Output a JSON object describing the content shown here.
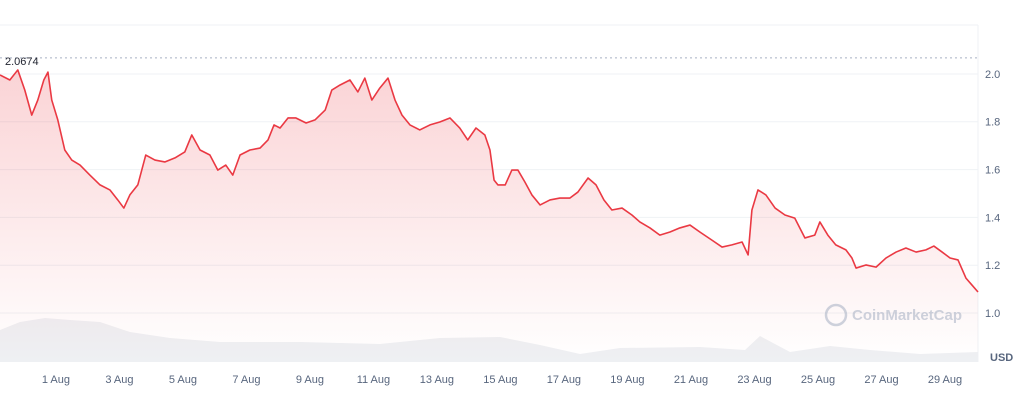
{
  "chart_data": {
    "type": "line",
    "color": "#ea3943",
    "currency": "USD",
    "watermark": "CoinMarketCap",
    "max_line": 2.0674,
    "ylim": [
      0.8,
      2.2
    ],
    "yticks": [
      {
        "value": 1.0,
        "label": "1.0"
      },
      1.2,
      1.4,
      1.6,
      1.8,
      {
        "value": 2.0,
        "label": "2.0"
      }
    ],
    "xlim": [
      -0.76,
      30.04
    ],
    "xticks": [
      {
        "value": 1,
        "label": "1 Aug"
      },
      {
        "value": 3,
        "label": "3 Aug"
      },
      {
        "value": 5,
        "label": "5 Aug"
      },
      {
        "value": 7,
        "label": "7 Aug"
      },
      {
        "value": 9,
        "label": "9 Aug"
      },
      {
        "value": 11,
        "label": "11 Aug"
      },
      {
        "value": 13,
        "label": "13 Aug"
      },
      {
        "value": 15,
        "label": "15 Aug"
      },
      {
        "value": 17,
        "label": "17 Aug"
      },
      {
        "value": 19,
        "label": "19 Aug"
      },
      {
        "value": 21,
        "label": "21 Aug"
      },
      {
        "value": 23,
        "label": "23 Aug"
      },
      {
        "value": 25,
        "label": "25 Aug"
      },
      {
        "value": 27,
        "label": "27 Aug"
      },
      {
        "value": 29,
        "label": "29 Aug"
      }
    ],
    "x": [
      -0.76,
      -0.45,
      -0.2,
      0.02,
      0.24,
      0.43,
      0.62,
      0.75,
      0.87,
      1.06,
      1.28,
      1.5,
      1.76,
      2.07,
      2.39,
      2.7,
      2.95,
      3.14,
      3.33,
      3.58,
      3.83,
      4.12,
      4.43,
      4.75,
      5.06,
      5.28,
      5.54,
      5.85,
      6.1,
      6.35,
      6.57,
      6.8,
      7.11,
      7.43,
      7.68,
      7.87,
      8.06,
      8.31,
      8.56,
      8.88,
      9.16,
      9.48,
      9.69,
      9.95,
      10.26,
      10.51,
      10.73,
      10.95,
      11.2,
      11.46,
      11.68,
      11.9,
      12.15,
      12.46,
      12.78,
      13.09,
      13.41,
      13.72,
      13.97,
      14.23,
      14.51,
      14.67,
      14.8,
      14.92,
      15.15,
      15.36,
      15.55,
      15.77,
      15.99,
      16.25,
      16.56,
      16.87,
      17.19,
      17.44,
      17.76,
      18.01,
      18.26,
      18.51,
      18.83,
      19.14,
      19.39,
      19.71,
      20.02,
      20.34,
      20.65,
      20.97,
      21.28,
      21.66,
      21.98,
      22.29,
      22.61,
      22.8,
      22.92,
      23.11,
      23.36,
      23.65,
      23.96,
      24.27,
      24.59,
      24.9,
      25.06,
      25.31,
      25.56,
      25.88,
      26.07,
      26.2,
      26.51,
      26.83,
      27.14,
      27.46,
      27.77,
      28.09,
      28.4,
      28.65,
      28.91,
      29.16,
      29.41,
      29.66,
      29.85,
      30.04
    ],
    "values": [
      1.996,
      1.975,
      2.017,
      1.933,
      1.828,
      1.891,
      1.975,
      2.008,
      1.891,
      1.808,
      1.682,
      1.64,
      1.619,
      1.577,
      1.536,
      1.515,
      1.473,
      1.439,
      1.494,
      1.536,
      1.661,
      1.64,
      1.632,
      1.649,
      1.674,
      1.745,
      1.682,
      1.661,
      1.598,
      1.619,
      1.577,
      1.661,
      1.682,
      1.69,
      1.724,
      1.787,
      1.774,
      1.816,
      1.816,
      1.795,
      1.808,
      1.849,
      1.933,
      1.954,
      1.975,
      1.925,
      1.983,
      1.891,
      1.941,
      1.983,
      1.891,
      1.828,
      1.787,
      1.766,
      1.787,
      1.799,
      1.816,
      1.774,
      1.724,
      1.774,
      1.745,
      1.682,
      1.556,
      1.536,
      1.536,
      1.598,
      1.598,
      1.548,
      1.494,
      1.452,
      1.473,
      1.481,
      1.481,
      1.506,
      1.565,
      1.536,
      1.473,
      1.431,
      1.439,
      1.41,
      1.381,
      1.356,
      1.326,
      1.339,
      1.356,
      1.368,
      1.339,
      1.305,
      1.276,
      1.285,
      1.297,
      1.243,
      1.431,
      1.515,
      1.494,
      1.439,
      1.41,
      1.397,
      1.314,
      1.326,
      1.381,
      1.326,
      1.285,
      1.264,
      1.23,
      1.188,
      1.201,
      1.192,
      1.23,
      1.255,
      1.272,
      1.255,
      1.264,
      1.28,
      1.255,
      1.23,
      1.222,
      1.146,
      1.117,
      1.088
    ]
  }
}
